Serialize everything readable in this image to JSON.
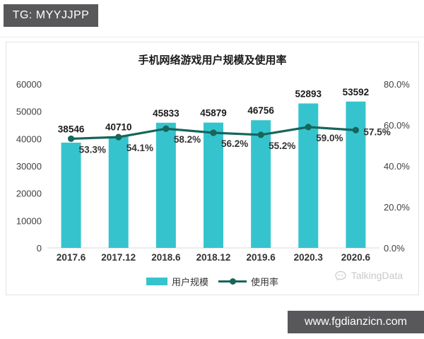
{
  "header": {
    "badge_label": "TG: MYYJJPP"
  },
  "footer": {
    "website": "www.fgdianzicn.com"
  },
  "watermark": {
    "label": "TalkingData"
  },
  "colors": {
    "bar": "#35c4ce",
    "line": "#17655b",
    "badge_bg": "#58585a",
    "footer_bg": "#58585a",
    "axis_text": "#404040",
    "baseline": "#d9d9d9"
  },
  "chart_data": {
    "type": "bar",
    "title": "手机网络游戏用户规模及使用率",
    "categories": [
      "2017.6",
      "2017.12",
      "2018.6",
      "2018.12",
      "2019.6",
      "2020.3",
      "2020.6"
    ],
    "series": [
      {
        "name": "用户规模",
        "type": "bar",
        "axis": "left",
        "values": [
          38546,
          40710,
          45833,
          45879,
          46756,
          52893,
          53592
        ],
        "color": "#35c4ce"
      },
      {
        "name": "使用率",
        "type": "line",
        "axis": "right",
        "values": [
          53.3,
          54.1,
          58.2,
          56.2,
          55.2,
          59.0,
          57.5
        ],
        "labels": [
          "53.3%",
          "54.1%",
          "58.2%",
          "56.2%",
          "55.2%",
          "59.0%",
          "57.5%"
        ],
        "color": "#17655b"
      }
    ],
    "left_axis": {
      "min": 0,
      "max": 60000,
      "tick_values": [
        0,
        10000,
        20000,
        30000,
        40000,
        50000,
        60000
      ],
      "tick_labels": [
        "0",
        "10000",
        "20000",
        "30000",
        "40000",
        "50000",
        "60000"
      ]
    },
    "right_axis": {
      "min": 0,
      "max": 80,
      "tick_values": [
        0,
        20,
        40,
        60,
        80
      ],
      "tick_labels": [
        "0.0%",
        "20.0%",
        "40.0%",
        "60.0%",
        "80.0%"
      ]
    },
    "grid": false,
    "legend_position": "bottom"
  }
}
